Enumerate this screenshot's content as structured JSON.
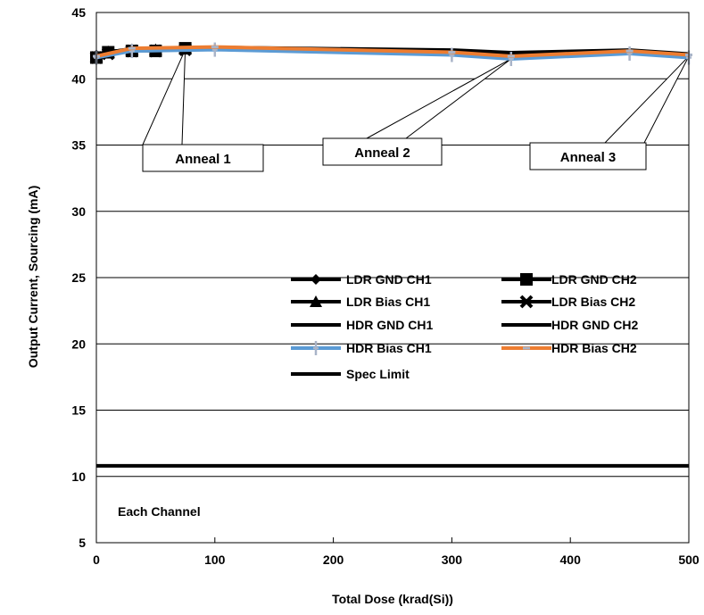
{
  "chart_data": {
    "type": "line",
    "title": "",
    "xlabel": "Total Dose (krad(Si))",
    "ylabel": "Output Current, Sourcing (mA)",
    "xlim": [
      0,
      500
    ],
    "ylim": [
      5,
      45
    ],
    "x_ticks": [
      0,
      100,
      200,
      300,
      400,
      500
    ],
    "y_ticks": [
      5,
      10,
      15,
      20,
      25,
      30,
      35,
      40,
      45
    ],
    "grid": "horizontal",
    "legend_position": "center-right",
    "series": [
      {
        "name": "LDR GND CH1",
        "color": "#000000",
        "marker": "diamond",
        "x": [
          0,
          10,
          30,
          50,
          75
        ],
        "y": [
          41.8,
          42.1,
          42.2,
          42.2,
          42.3
        ]
      },
      {
        "name": "LDR GND CH2",
        "color": "#000000",
        "marker": "square",
        "x": [
          0,
          10,
          30,
          50,
          75
        ],
        "y": [
          41.6,
          42.0,
          42.1,
          42.1,
          42.3
        ]
      },
      {
        "name": "LDR Bias CH1",
        "color": "#000000",
        "marker": "triangle",
        "x": [
          0,
          10,
          30,
          50,
          75
        ],
        "y": [
          41.7,
          42.0,
          42.2,
          42.2,
          42.3
        ]
      },
      {
        "name": "LDR Bias CH2",
        "color": "#000000",
        "marker": "x",
        "x": [
          0,
          10,
          30,
          50,
          75
        ],
        "y": [
          41.6,
          41.9,
          42.1,
          42.1,
          42.2
        ]
      },
      {
        "name": "HDR GND CH1",
        "color": "#000000",
        "marker": "none",
        "x": [
          0,
          30,
          100,
          300,
          350,
          450,
          500
        ],
        "y": [
          41.9,
          42.3,
          42.4,
          42.2,
          42.0,
          42.2,
          41.9
        ]
      },
      {
        "name": "HDR GND CH2",
        "color": "#000000",
        "marker": "none",
        "x": [
          0,
          30,
          100,
          300,
          350,
          450,
          500
        ],
        "y": [
          41.8,
          42.2,
          42.3,
          42.1,
          41.9,
          42.1,
          41.8
        ]
      },
      {
        "name": "HDR Bias CH1",
        "color": "#5b9bd5",
        "marker": "plus",
        "x": [
          0,
          30,
          100,
          300,
          350,
          450,
          500
        ],
        "y": [
          41.6,
          42.1,
          42.2,
          41.8,
          41.5,
          41.9,
          41.6
        ]
      },
      {
        "name": "HDR Bias CH2",
        "color": "#ed7d31",
        "marker": "dash",
        "x": [
          0,
          30,
          100,
          300,
          350,
          450,
          500
        ],
        "y": [
          41.7,
          42.3,
          42.4,
          42.0,
          41.7,
          42.1,
          41.8
        ]
      },
      {
        "name": "Spec Limit",
        "color": "#000000",
        "marker": "none",
        "x": [
          0,
          500
        ],
        "y": [
          10.8,
          10.8
        ]
      }
    ],
    "annotations": [
      {
        "text": "Anneal 1",
        "target": [
          75,
          42.2
        ]
      },
      {
        "text": "Anneal 2",
        "target": [
          350,
          41.5
        ]
      },
      {
        "text": "Anneal 3",
        "target": [
          500,
          41.7
        ]
      },
      {
        "text": "Each Channel"
      }
    ]
  }
}
